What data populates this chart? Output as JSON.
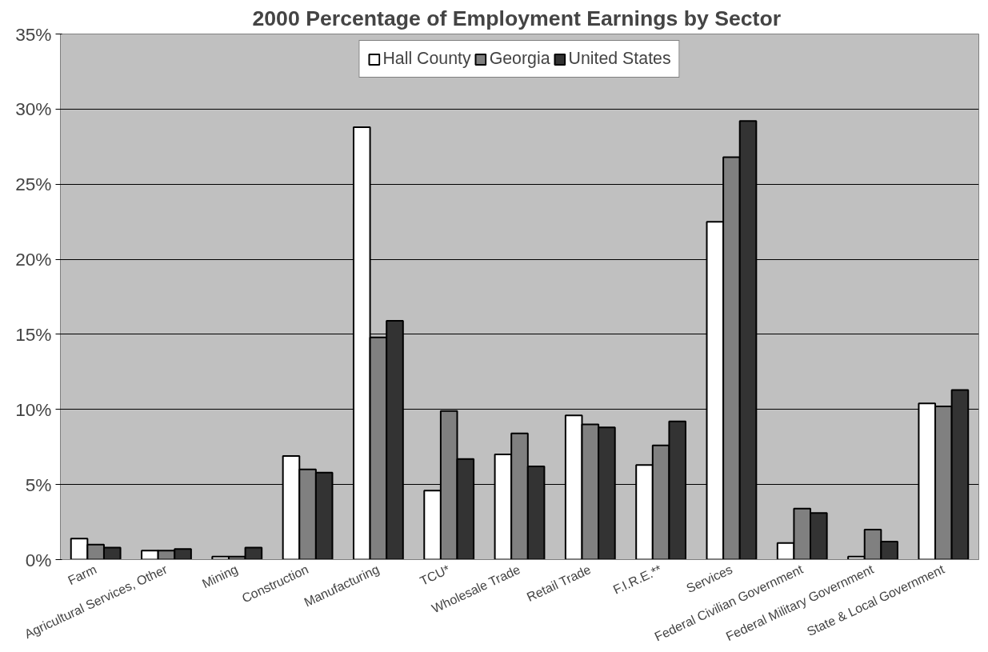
{
  "chart_data": {
    "type": "bar",
    "title": "2000 Percentage of  Employment Earnings by Sector",
    "categories": [
      "Farm",
      "Agricultural Services, Other",
      "Mining",
      "Construction",
      "Manufacturing",
      "TCU*",
      "Wholesale Trade",
      "Retail Trade",
      "F.I.R.E.**",
      "Services",
      "Federal Civilian Government",
      "Federal Military Government",
      "State & Local Government"
    ],
    "series": [
      {
        "name": "Hall County",
        "color": "#ffffff",
        "values": [
          1.4,
          0.6,
          0.2,
          6.9,
          28.8,
          4.6,
          7.0,
          9.6,
          6.3,
          22.5,
          1.1,
          0.2,
          10.4
        ]
      },
      {
        "name": "Georgia",
        "color": "#808080",
        "values": [
          1.0,
          0.6,
          0.2,
          6.0,
          14.8,
          9.9,
          8.4,
          9.0,
          7.6,
          26.8,
          3.4,
          2.0,
          10.2
        ]
      },
      {
        "name": "United States",
        "color": "#333333",
        "values": [
          0.8,
          0.7,
          0.8,
          5.8,
          15.9,
          6.7,
          6.2,
          8.8,
          9.2,
          29.2,
          3.1,
          1.2,
          11.3
        ]
      }
    ],
    "ylim": [
      0,
      35
    ],
    "yticks": [
      {
        "value": 0,
        "label": "0%"
      },
      {
        "value": 5,
        "label": "5%"
      },
      {
        "value": 10,
        "label": "10%"
      },
      {
        "value": 15,
        "label": "15%"
      },
      {
        "value": 20,
        "label": "20%"
      },
      {
        "value": 25,
        "label": "25%"
      },
      {
        "value": 30,
        "label": "30%"
      },
      {
        "value": 35,
        "label": "35%"
      }
    ],
    "grid": "y",
    "legend": "top"
  }
}
